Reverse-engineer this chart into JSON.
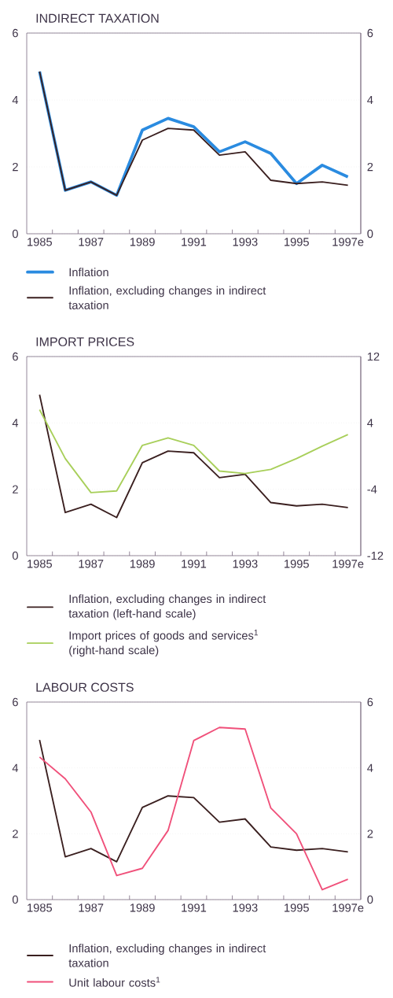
{
  "chart_data": [
    {
      "type": "line",
      "title": "INDIRECT TAXATION",
      "x": [
        1985,
        1986,
        1987,
        1988,
        1989,
        1990,
        1991,
        1992,
        1993,
        1994,
        1995,
        1996,
        1997
      ],
      "xlim": [
        1984.5,
        1997.5
      ],
      "xticks": [
        1985,
        1987,
        1989,
        1991,
        1993,
        1995,
        {
          "value": 1997,
          "label": "1997e"
        },
        {
          "value": 1985.5,
          "label": null
        },
        {
          "value": 1986.5,
          "label": null
        },
        {
          "value": 1987.5,
          "label": null
        },
        {
          "value": 1988.5,
          "label": null
        },
        {
          "value": 1989.5,
          "label": null
        },
        {
          "value": 1990.5,
          "label": null
        },
        {
          "value": 1991.5,
          "label": null
        },
        {
          "value": 1992.5,
          "label": null
        },
        {
          "value": 1993.5,
          "label": null
        },
        {
          "value": 1994.5,
          "label": null
        },
        {
          "value": 1995.5,
          "label": null
        },
        {
          "value": 1996.5,
          "label": null
        }
      ],
      "ylim": [
        0,
        6
      ],
      "yticks": [
        0,
        2,
        4,
        6
      ],
      "y2lim": [
        0,
        6
      ],
      "y2ticks": [
        0,
        2,
        4,
        6
      ],
      "grid": "y",
      "legend": "bottom",
      "series": [
        {
          "name": "Inflation",
          "color": "#2a8be0",
          "values": [
            4.85,
            1.3,
            1.55,
            1.15,
            3.1,
            3.45,
            3.2,
            2.45,
            2.75,
            2.4,
            1.5,
            2.05,
            1.7
          ]
        },
        {
          "name": "Inflation, excluding changes in indirect taxation",
          "color": "#3a1f1f",
          "values": [
            4.85,
            1.3,
            1.55,
            1.15,
            2.8,
            3.15,
            3.1,
            2.35,
            2.45,
            1.6,
            1.5,
            1.55,
            1.45
          ]
        }
      ]
    },
    {
      "type": "line",
      "title": "IMPORT PRICES",
      "x": [
        1985,
        1986,
        1987,
        1988,
        1989,
        1990,
        1991,
        1992,
        1993,
        1994,
        1995,
        1996,
        1997
      ],
      "xlim": [
        1984.5,
        1997.5
      ],
      "xticks": [
        1985,
        1987,
        1989,
        1991,
        1993,
        1995,
        {
          "value": 1997,
          "label": "1997e"
        },
        {
          "value": 1985.5,
          "label": null
        },
        {
          "value": 1986.5,
          "label": null
        },
        {
          "value": 1987.5,
          "label": null
        },
        {
          "value": 1988.5,
          "label": null
        },
        {
          "value": 1989.5,
          "label": null
        },
        {
          "value": 1990.5,
          "label": null
        },
        {
          "value": 1991.5,
          "label": null
        },
        {
          "value": 1992.5,
          "label": null
        },
        {
          "value": 1993.5,
          "label": null
        },
        {
          "value": 1994.5,
          "label": null
        },
        {
          "value": 1995.5,
          "label": null
        },
        {
          "value": 1996.5,
          "label": null
        }
      ],
      "ylim": [
        0,
        6
      ],
      "yticks": [
        0,
        2,
        4,
        6
      ],
      "y2lim": [
        -12,
        12
      ],
      "y2ticks": [
        -12,
        -4,
        4,
        12
      ],
      "grid": "y",
      "legend": "bottom",
      "series": [
        {
          "name": "Inflation, excluding changes in indirect taxation (left-hand scale)",
          "color": "#3a1f1f",
          "values": [
            4.85,
            1.3,
            1.55,
            1.15,
            2.8,
            3.15,
            3.1,
            2.35,
            2.45,
            1.6,
            1.5,
            1.55,
            1.45
          ]
        },
        {
          "name": "Import prices of goods and services$^{1}$ (right-hand scale)",
          "color": "#a8cf5a",
          "axis": "y2",
          "values": [
            5.6,
            -0.3,
            -4.4,
            -4.2,
            1.3,
            2.2,
            1.3,
            -1.8,
            -2.1,
            -1.6,
            -0.3,
            1.2,
            2.6
          ]
        }
      ]
    },
    {
      "type": "line",
      "title": "LABOUR COSTS",
      "x": [
        1985,
        1986,
        1987,
        1988,
        1989,
        1990,
        1991,
        1992,
        1993,
        1994,
        1995,
        1996,
        1997
      ],
      "xlim": [
        1984.5,
        1997.5
      ],
      "xticks": [
        1985,
        1987,
        1989,
        1991,
        1993,
        1995,
        {
          "value": 1997,
          "label": "1997e"
        },
        {
          "value": 1985.5,
          "label": null
        },
        {
          "value": 1986.5,
          "label": null
        },
        {
          "value": 1987.5,
          "label": null
        },
        {
          "value": 1988.5,
          "label": null
        },
        {
          "value": 1989.5,
          "label": null
        },
        {
          "value": 1990.5,
          "label": null
        },
        {
          "value": 1991.5,
          "label": null
        },
        {
          "value": 1992.5,
          "label": null
        },
        {
          "value": 1993.5,
          "label": null
        },
        {
          "value": 1994.5,
          "label": null
        },
        {
          "value": 1995.5,
          "label": null
        },
        {
          "value": 1996.5,
          "label": null
        }
      ],
      "ylim": [
        0,
        6
      ],
      "yticks": [
        0,
        2,
        4,
        6
      ],
      "y2lim": [
        0,
        6
      ],
      "y2ticks": [
        0,
        2,
        4,
        6
      ],
      "grid": "y",
      "legend": "bottom",
      "series": [
        {
          "name": "Inflation, excluding changes in indirect taxation",
          "color": "#3a1f1f",
          "values": [
            4.85,
            1.3,
            1.55,
            1.15,
            2.8,
            3.15,
            3.1,
            2.35,
            2.45,
            1.6,
            1.5,
            1.55,
            1.45
          ]
        },
        {
          "name": "Unit labour costs$^{1}$",
          "color": "#f0507a",
          "values": [
            4.33,
            3.67,
            2.66,
            0.73,
            0.95,
            2.1,
            4.83,
            5.23,
            5.18,
            2.78,
            2.0,
            0.3,
            0.62
          ]
        }
      ]
    }
  ]
}
